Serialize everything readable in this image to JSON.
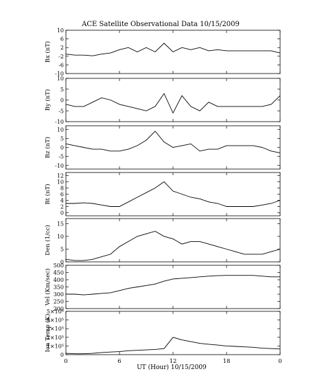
{
  "title": "ACE Satellite Observational Data   10/15/2009",
  "xlabel": "UT (Hour)   10/15/2009",
  "x_tick_labels": [
    "0",
    "6",
    "12",
    "18",
    "0"
  ],
  "chart_data": [
    {
      "type": "line",
      "ylabel": "Bx (nT)",
      "ylim": [
        -10,
        10
      ],
      "y_ticks": [
        10,
        6,
        2,
        -2,
        -6,
        -10
      ],
      "y_tick_labels": [
        "10",
        "6",
        "2",
        "-2",
        "-6",
        "-10"
      ],
      "x": [
        0,
        1,
        2,
        3,
        4,
        5,
        6,
        7,
        8,
        9,
        10,
        11,
        12,
        13,
        14,
        15,
        16,
        17,
        18,
        19,
        20,
        21,
        22,
        23,
        24
      ],
      "values": [
        -1,
        -1.5,
        -1.5,
        -1.8,
        -1,
        -0.5,
        1,
        2,
        0,
        2,
        0,
        4,
        0,
        2,
        1,
        2,
        0.5,
        1,
        0.5,
        0.5,
        0.5,
        0.5,
        0.5,
        0.5,
        -0.5
      ]
    },
    {
      "type": "line",
      "ylabel": "By (nT)",
      "ylim": [
        -10,
        10
      ],
      "y_ticks": [
        10,
        5,
        0,
        -5,
        -10
      ],
      "y_tick_labels": [
        "10",
        "5",
        "0",
        "-5",
        "-10"
      ],
      "x": [
        0,
        1,
        2,
        3,
        4,
        5,
        6,
        7,
        8,
        9,
        10,
        11,
        12,
        13,
        14,
        15,
        16,
        17,
        18,
        19,
        20,
        21,
        22,
        23,
        24
      ],
      "values": [
        -2,
        -3,
        -3,
        -1,
        1,
        0,
        -2,
        -3,
        -4,
        -5,
        -3,
        3,
        -6,
        2,
        -3,
        -5,
        -1,
        -3,
        -3,
        -3,
        -3,
        -3,
        -3,
        -2,
        2
      ]
    },
    {
      "type": "line",
      "ylabel": "Bz (nT)",
      "ylim": [
        -12,
        12
      ],
      "y_ticks": [
        10,
        5,
        0,
        -5,
        -10
      ],
      "y_tick_labels": [
        "10",
        "5",
        "0",
        "-5",
        "-10"
      ],
      "x": [
        0,
        1,
        2,
        3,
        4,
        5,
        6,
        7,
        8,
        9,
        10,
        11,
        12,
        13,
        14,
        15,
        16,
        17,
        18,
        19,
        20,
        21,
        22,
        23,
        24
      ],
      "values": [
        2,
        1,
        0,
        -1,
        -1,
        -2,
        -2,
        -1,
        1,
        4,
        9,
        3,
        0,
        1,
        2,
        -2,
        -1,
        -1,
        1,
        1,
        1,
        1,
        0,
        -2,
        -3
      ]
    },
    {
      "type": "line",
      "ylabel": "Bt (nT)",
      "ylim": [
        -1,
        13
      ],
      "y_ticks": [
        12,
        10,
        8,
        6,
        4,
        2,
        0
      ],
      "y_tick_labels": [
        "12",
        "10",
        "8",
        "6",
        "4",
        "2",
        "0"
      ],
      "x": [
        0,
        1,
        2,
        3,
        4,
        5,
        6,
        7,
        8,
        9,
        10,
        11,
        12,
        13,
        14,
        15,
        16,
        17,
        18,
        19,
        20,
        21,
        22,
        23,
        24
      ],
      "values": [
        3,
        3,
        3.2,
        3,
        2.5,
        2,
        2,
        3.5,
        5,
        6.5,
        8,
        10,
        7,
        6,
        5,
        4.5,
        3.5,
        3,
        2,
        2,
        2,
        2,
        2.5,
        3,
        4
      ]
    },
    {
      "type": "line",
      "ylabel": "Den (1/cc)",
      "ylim": [
        0,
        17
      ],
      "y_ticks": [
        15,
        10,
        5,
        0
      ],
      "y_tick_labels": [
        "15",
        "10",
        "5",
        "0"
      ],
      "x": [
        0,
        1,
        2,
        3,
        4,
        5,
        6,
        7,
        8,
        9,
        10,
        11,
        12,
        13,
        14,
        15,
        16,
        17,
        18,
        19,
        20,
        21,
        22,
        23,
        24
      ],
      "values": [
        1,
        0.5,
        0.5,
        1,
        2,
        3,
        6,
        8,
        10,
        11,
        12,
        10,
        9,
        7,
        8,
        8,
        7,
        6,
        5,
        4,
        3,
        3,
        3,
        4,
        5
      ]
    },
    {
      "type": "line",
      "ylabel": "Vel (Km/sec)",
      "ylim": [
        200,
        500
      ],
      "y_ticks": [
        500,
        450,
        400,
        350,
        300,
        250,
        200
      ],
      "y_tick_labels": [
        "500",
        "450",
        "400",
        "350",
        "300",
        "250",
        "200"
      ],
      "x": [
        0,
        1,
        2,
        3,
        4,
        5,
        6,
        7,
        8,
        9,
        10,
        11,
        12,
        13,
        14,
        15,
        16,
        17,
        18,
        19,
        20,
        21,
        22,
        23,
        24
      ],
      "values": [
        300,
        300,
        295,
        300,
        305,
        310,
        325,
        340,
        350,
        360,
        370,
        390,
        405,
        410,
        415,
        420,
        425,
        428,
        430,
        430,
        430,
        430,
        425,
        420,
        420
      ]
    },
    {
      "type": "line",
      "ylabel": "Ion Temp (K)",
      "ylim": [
        0,
        500000
      ],
      "y_ticks": [
        500000,
        400000,
        300000,
        200000,
        100000,
        0
      ],
      "y_tick_labels": [
        "5×10⁵",
        "4×10⁵",
        "3×10⁵",
        "2×10⁵",
        "1×10⁵",
        "0"
      ],
      "x": [
        0,
        1,
        2,
        3,
        4,
        5,
        6,
        7,
        8,
        9,
        10,
        11,
        12,
        13,
        14,
        15,
        16,
        17,
        18,
        19,
        20,
        21,
        22,
        23,
        24
      ],
      "values": [
        15000,
        10000,
        10000,
        15000,
        25000,
        30000,
        35000,
        45000,
        50000,
        55000,
        60000,
        70000,
        200000,
        170000,
        150000,
        130000,
        120000,
        110000,
        100000,
        95000,
        90000,
        85000,
        75000,
        70000,
        65000
      ]
    }
  ]
}
